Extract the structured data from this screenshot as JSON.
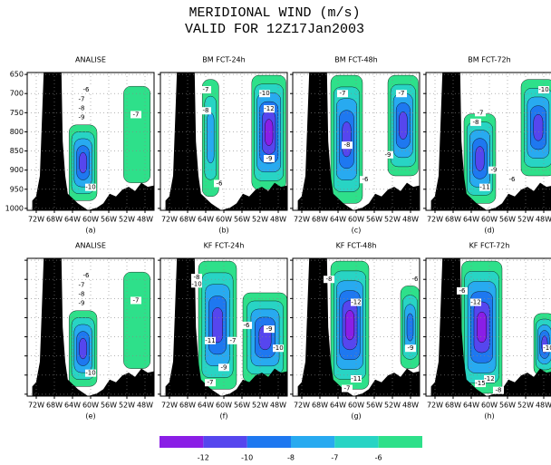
{
  "chart_data": {
    "type": "contour",
    "title": "MERIDIONAL WIND (m/s)",
    "subtitle": "VALID FOR 12Z17Jan2003",
    "xlim": [
      -74,
      -46
    ],
    "ylim": [
      1005,
      645
    ],
    "xticks": [
      {
        "value": -72,
        "label": "72W"
      },
      {
        "value": -68,
        "label": "68W"
      },
      {
        "value": -64,
        "label": "64W"
      },
      {
        "value": -60,
        "label": "60W"
      },
      {
        "value": -56,
        "label": "56W"
      },
      {
        "value": -52,
        "label": "52W"
      },
      {
        "value": -48,
        "label": "48W"
      }
    ],
    "yticks": [
      650,
      700,
      750,
      800,
      850,
      900,
      950,
      1000
    ],
    "grid": true,
    "colorbar": {
      "colors": [
        "#8a1ee6",
        "#5646ee",
        "#1e78f0",
        "#28aaf0",
        "#28d4c4",
        "#2ee08a"
      ],
      "ticks": [
        -12,
        -10,
        -8,
        -7,
        -6
      ]
    },
    "panels": [
      {
        "title": "ANALISE",
        "label": "(a)",
        "contour_labels": [
          {
            "x": -61,
            "y": 690,
            "value": -6
          },
          {
            "x": -62,
            "y": 715,
            "value": -7
          },
          {
            "x": -62,
            "y": 738,
            "value": -8
          },
          {
            "x": -62,
            "y": 762,
            "value": -9
          },
          {
            "x": -60,
            "y": 945,
            "value": -10
          },
          {
            "x": -50,
            "y": 755,
            "value": -7
          }
        ]
      },
      {
        "title": "BM FCT-24h",
        "label": "(b)",
        "contour_labels": [
          {
            "x": -64,
            "y": 690,
            "value": -7
          },
          {
            "x": -64,
            "y": 745,
            "value": -8
          },
          {
            "x": -51,
            "y": 700,
            "value": -10
          },
          {
            "x": -50,
            "y": 740,
            "value": -12
          },
          {
            "x": -61,
            "y": 935,
            "value": -6
          },
          {
            "x": -50,
            "y": 870,
            "value": -9
          }
        ]
      },
      {
        "title": "BM FCT-48h",
        "label": "(c)",
        "contour_labels": [
          {
            "x": -63,
            "y": 700,
            "value": -7
          },
          {
            "x": -62,
            "y": 835,
            "value": -8
          },
          {
            "x": -53,
            "y": 860,
            "value": -9
          },
          {
            "x": -58,
            "y": 925,
            "value": -6
          },
          {
            "x": -50,
            "y": 700,
            "value": -7
          }
        ]
      },
      {
        "title": "BM FCT-72h",
        "label": "(d)",
        "contour_labels": [
          {
            "x": -62,
            "y": 750,
            "value": -7
          },
          {
            "x": -63,
            "y": 775,
            "value": -8
          },
          {
            "x": -59,
            "y": 900,
            "value": -9
          },
          {
            "x": -61,
            "y": 945,
            "value": -11
          },
          {
            "x": -55,
            "y": 925,
            "value": -6
          },
          {
            "x": -48,
            "y": 690,
            "value": -10
          }
        ]
      },
      {
        "title": "ANALISE",
        "label": "(e)",
        "contour_labels": [
          {
            "x": -61,
            "y": 690,
            "value": -6
          },
          {
            "x": -62,
            "y": 715,
            "value": -7
          },
          {
            "x": -62,
            "y": 738,
            "value": -8
          },
          {
            "x": -62,
            "y": 762,
            "value": -9
          },
          {
            "x": -60,
            "y": 945,
            "value": -10
          },
          {
            "x": -50,
            "y": 755,
            "value": -7
          }
        ]
      },
      {
        "title": "KF FCT-24h",
        "label": "(f)",
        "contour_labels": [
          {
            "x": -66,
            "y": 695,
            "value": -8
          },
          {
            "x": -66,
            "y": 712,
            "value": -10
          },
          {
            "x": -63,
            "y": 860,
            "value": -11
          },
          {
            "x": -58,
            "y": 860,
            "value": -7
          },
          {
            "x": -55,
            "y": 820,
            "value": -6
          },
          {
            "x": -50,
            "y": 830,
            "value": -9
          },
          {
            "x": -48,
            "y": 880,
            "value": -10
          },
          {
            "x": -60,
            "y": 930,
            "value": -9
          },
          {
            "x": -63,
            "y": 970,
            "value": -7
          }
        ]
      },
      {
        "title": "KF FCT-48h",
        "label": "(g)",
        "contour_labels": [
          {
            "x": -66,
            "y": 700,
            "value": -8
          },
          {
            "x": -60,
            "y": 760,
            "value": -12
          },
          {
            "x": -47,
            "y": 700,
            "value": -6
          },
          {
            "x": -48,
            "y": 880,
            "value": -9
          },
          {
            "x": -60,
            "y": 960,
            "value": -11
          },
          {
            "x": -62,
            "y": 985,
            "value": -7
          }
        ]
      },
      {
        "title": "KF FCT-72h",
        "label": "(h)",
        "contour_labels": [
          {
            "x": -66,
            "y": 730,
            "value": -6
          },
          {
            "x": -63,
            "y": 760,
            "value": -12
          },
          {
            "x": -60,
            "y": 960,
            "value": -12
          },
          {
            "x": -62,
            "y": 972,
            "value": -15
          },
          {
            "x": -47,
            "y": 880,
            "value": -10
          },
          {
            "x": -58,
            "y": 990,
            "value": -8
          }
        ]
      }
    ]
  }
}
